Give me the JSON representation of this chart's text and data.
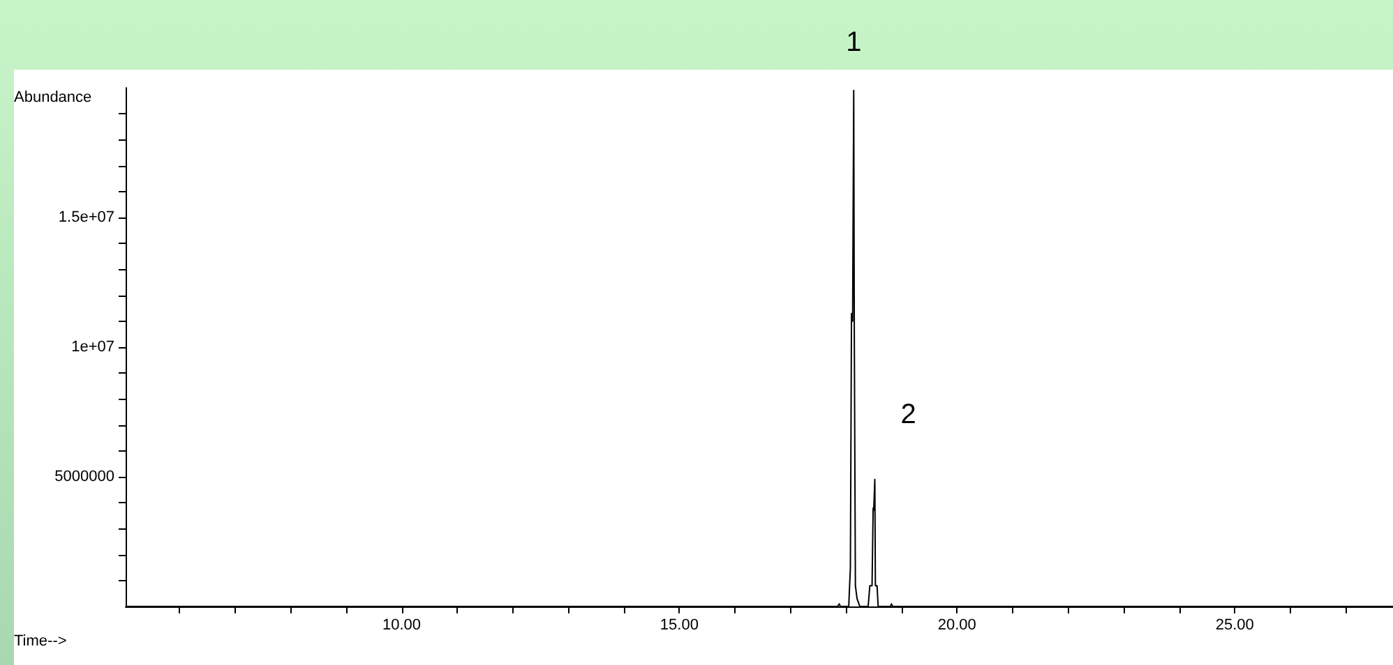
{
  "chart_data": {
    "type": "line",
    "xlabel": "Time-->",
    "ylabel": "Abundance",
    "x": [
      5.03,
      17.85,
      17.88,
      17.9,
      18.05,
      18.08,
      18.1,
      18.12,
      18.14,
      18.15,
      18.17,
      18.2,
      18.25,
      18.4,
      18.43,
      18.47,
      18.49,
      18.5,
      18.52,
      18.53,
      18.56,
      18.58,
      18.8,
      18.82,
      18.84,
      27.85
    ],
    "series": [
      {
        "color": "#000000",
        "values": [
          0,
          0,
          100000,
          0,
          0,
          1500000,
          11300000,
          11000000,
          19900000,
          10800000,
          800000,
          300000,
          0,
          0,
          800000,
          800000,
          3800000,
          3700000,
          4900000,
          800000,
          800000,
          0,
          0,
          100000,
          0,
          0
        ]
      }
    ],
    "xlim": [
      5.03,
      27.85
    ],
    "xticks": [
      {
        "value": 6,
        "label": null
      },
      {
        "value": 7,
        "label": null
      },
      {
        "value": 8,
        "label": null
      },
      {
        "value": 9,
        "label": null
      },
      {
        "value": 10,
        "label": "10.00"
      },
      {
        "value": 11,
        "label": null
      },
      {
        "value": 12,
        "label": null
      },
      {
        "value": 13,
        "label": null
      },
      {
        "value": 14,
        "label": null
      },
      {
        "value": 15,
        "label": "15.00"
      },
      {
        "value": 16,
        "label": null
      },
      {
        "value": 17,
        "label": null
      },
      {
        "value": 18,
        "label": null
      },
      {
        "value": 19,
        "label": null
      },
      {
        "value": 20,
        "label": "20.00"
      },
      {
        "value": 21,
        "label": null
      },
      {
        "value": 22,
        "label": null
      },
      {
        "value": 23,
        "label": null
      },
      {
        "value": 24,
        "label": null
      },
      {
        "value": 25,
        "label": "25.00"
      },
      {
        "value": 26,
        "label": null
      },
      {
        "value": 27,
        "label": null
      }
    ],
    "ylim": [
      0,
      20000000
    ],
    "yticks": [
      {
        "value": 1000000,
        "label": null
      },
      {
        "value": 2000000,
        "label": null
      },
      {
        "value": 3000000,
        "label": null
      },
      {
        "value": 4000000,
        "label": null
      },
      5000000,
      {
        "value": 6000000,
        "label": null
      },
      {
        "value": 7000000,
        "label": null
      },
      {
        "value": 8000000,
        "label": null
      },
      {
        "value": 9000000,
        "label": null
      },
      {
        "value": 10000000,
        "label": "1e+07"
      },
      {
        "value": 11000000,
        "label": null
      },
      {
        "value": 12000000,
        "label": null
      },
      {
        "value": 13000000,
        "label": null
      },
      {
        "value": 14000000,
        "label": null
      },
      {
        "value": 15000000,
        "label": "1.5e+07"
      },
      {
        "value": 16000000,
        "label": null
      },
      {
        "value": 17000000,
        "label": null
      },
      {
        "value": 18000000,
        "label": null
      },
      {
        "value": 19000000,
        "label": null
      }
    ],
    "annotations": [
      {
        "text": "1",
        "x": 18.14,
        "y": 19900000
      },
      {
        "text": "2",
        "x": 18.52,
        "y": 4900000
      }
    ],
    "marker": "none",
    "line_style": "solid"
  }
}
